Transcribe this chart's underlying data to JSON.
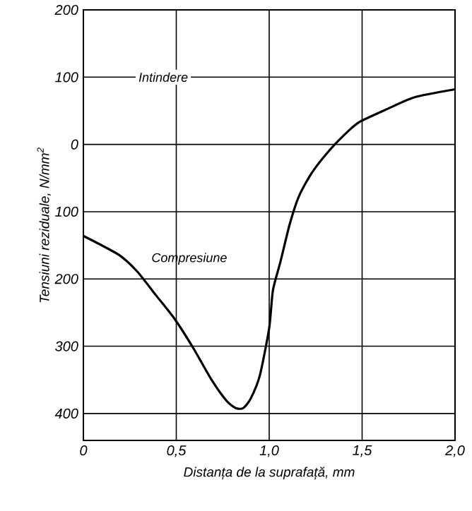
{
  "chart_data": {
    "type": "line",
    "xlabel": "Distanța de la suprafață, mm",
    "ylabel": "Tensiuni reziduale,  N/mm$^{2}$",
    "annotations": [
      "Intindere",
      "Compresiune"
    ],
    "x": [
      0,
      0.19,
      0.29,
      0.39,
      0.49,
      0.59,
      0.69,
      0.77,
      0.82,
      0.86,
      0.9,
      0.95,
      1.0,
      1.02,
      1.06,
      1.11,
      1.16,
      1.23,
      1.33,
      1.43,
      1.49,
      1.63,
      1.78,
      2.0
    ],
    "series": [
      {
        "color": "#000000",
        "values": [
          -136,
          -164,
          -189,
          -224,
          -259,
          -302,
          -350,
          -381,
          -392,
          -392,
          -378,
          -343,
          -273,
          -217,
          -175,
          -119,
          -77,
          -42,
          -7,
          21,
          34,
          52,
          70,
          82
        ]
      }
    ],
    "xlim": [
      0,
      2.0
    ],
    "ylim": [
      -440,
      200
    ],
    "xticks": [
      0,
      {
        "value": 0.5,
        "label": "0,5"
      },
      {
        "value": 1.0,
        "label": "1,0"
      },
      {
        "value": 1.5,
        "label": "1,5"
      },
      {
        "value": 2.0,
        "label": "2,0"
      }
    ],
    "yticks": [
      {
        "value": -400,
        "label": "400"
      },
      {
        "value": -300,
        "label": "300"
      },
      {
        "value": -200,
        "label": "200"
      },
      {
        "value": -100,
        "label": "100"
      },
      0,
      100,
      200
    ],
    "grid": true,
    "marker": "none",
    "line_style": "solid"
  }
}
